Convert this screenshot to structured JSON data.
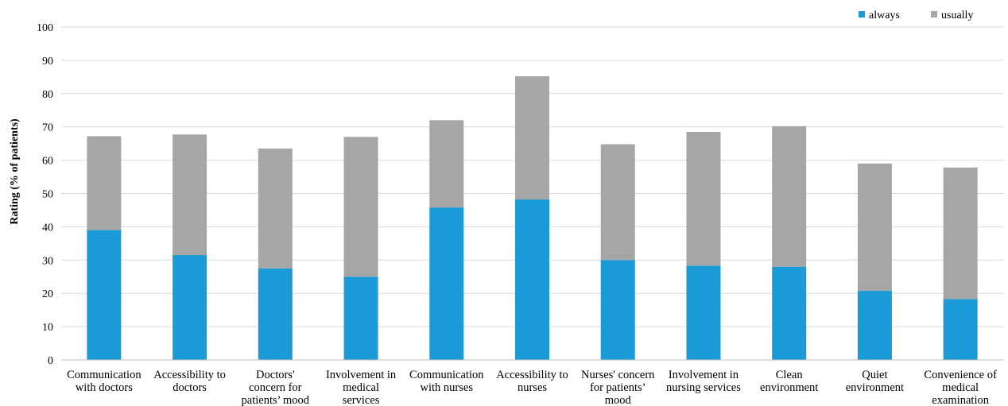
{
  "chart_data": {
    "type": "bar",
    "stacked": true,
    "title": "",
    "xlabel": "",
    "ylabel": "Rating (% of patients)",
    "ylim": [
      0,
      100
    ],
    "yticks": [
      0,
      10,
      20,
      30,
      40,
      50,
      60,
      70,
      80,
      90,
      100
    ],
    "grid": true,
    "legend_position": "top-right",
    "categories": [
      "Communication with doctors",
      "Accessibility to doctors",
      "Doctors' concern for patients' mood",
      "Involvement in medical services",
      "Communication with nurses",
      "Accessibility to nurses",
      "Nurses' concern for patients' mood",
      "Involvement in nursing services",
      "Clean environment",
      "Quiet environment",
      "Convenience of medical examination"
    ],
    "category_lines": [
      [
        "Communication",
        "with doctors"
      ],
      [
        "Accessibility to",
        "doctors"
      ],
      [
        "Doctors'",
        "concern for",
        "patients’ mood"
      ],
      [
        "Involvement in",
        "medical",
        "services"
      ],
      [
        "Communication",
        "with nurses"
      ],
      [
        "Accessibility to",
        "nurses"
      ],
      [
        "Nurses' concern",
        "for patients’",
        "mood"
      ],
      [
        "Involvement in",
        "nursing services"
      ],
      [
        "Clean",
        "environment"
      ],
      [
        "Quiet",
        "environment"
      ],
      [
        "Convenience of",
        "medical",
        "examination"
      ]
    ],
    "series": [
      {
        "name": "always",
        "color": "#1a9bd7",
        "values": [
          39,
          31.5,
          27.5,
          25,
          45.8,
          48.2,
          30,
          28.3,
          28,
          20.8,
          18.3
        ]
      },
      {
        "name": "usually",
        "color": "#a6a6a6",
        "values": [
          28.2,
          36.2,
          36,
          42,
          26.2,
          37,
          34.8,
          40.2,
          42.2,
          38.2,
          39.5
        ]
      }
    ]
  }
}
